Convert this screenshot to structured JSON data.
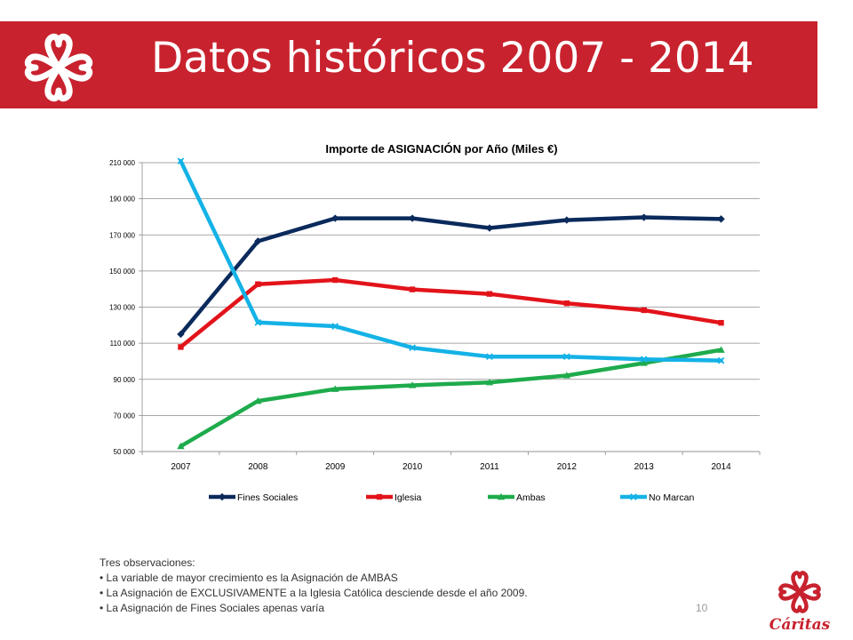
{
  "header": {
    "title": "Datos históricos 2007 - 2014"
  },
  "notes": {
    "heading": "Tres observaciones:",
    "items": [
      "• La variable de mayor crecimiento es la Asignación de AMBAS",
      "• La Asignación de EXCLUSIVAMENTE a la Iglesia Católica desciende desde el año 2009.",
      "•  La Asignación de Fines Sociales apenas varía"
    ]
  },
  "page_number": "10",
  "brand": {
    "name": "Cáritas",
    "color": "#c8222e"
  },
  "chart_data": {
    "type": "line",
    "title": "Importe de ASIGNACIÓN por Año  (Miles €)",
    "xlabel": "",
    "ylabel": "",
    "categories": [
      "2007",
      "2008",
      "2009",
      "2010",
      "2011",
      "2012",
      "2013",
      "2014"
    ],
    "ylim": [
      50000,
      210000
    ],
    "yticks": [
      50000,
      70000,
      90000,
      110000,
      130000,
      150000,
      170000,
      190000,
      210000
    ],
    "ytick_labels": [
      "50 000",
      "70 000",
      "90 000",
      "110 000",
      "130 000",
      "150 000",
      "170 000",
      "190 000",
      "210 000"
    ],
    "grid": true,
    "legend_position": "bottom",
    "series": [
      {
        "name": "Fines Sociales",
        "color": "#0b2a5c",
        "marker": "diamond",
        "values": [
          115000,
          166500,
          179200,
          179200,
          173800,
          178200,
          179700,
          178800
        ]
      },
      {
        "name": "Iglesia",
        "color": "#e3131a",
        "marker": "square",
        "values": [
          107900,
          142700,
          145000,
          139800,
          137300,
          132100,
          128300,
          121300
        ]
      },
      {
        "name": "Ambas",
        "color": "#1fab4c",
        "marker": "triangle",
        "values": [
          52900,
          78000,
          84600,
          86700,
          88300,
          92100,
          99000,
          106300
        ]
      },
      {
        "name": "No Marcan",
        "color": "#14b2e6",
        "marker": "cross",
        "values": [
          210900,
          121500,
          119400,
          107500,
          102600,
          102600,
          101100,
          100400
        ]
      }
    ]
  }
}
